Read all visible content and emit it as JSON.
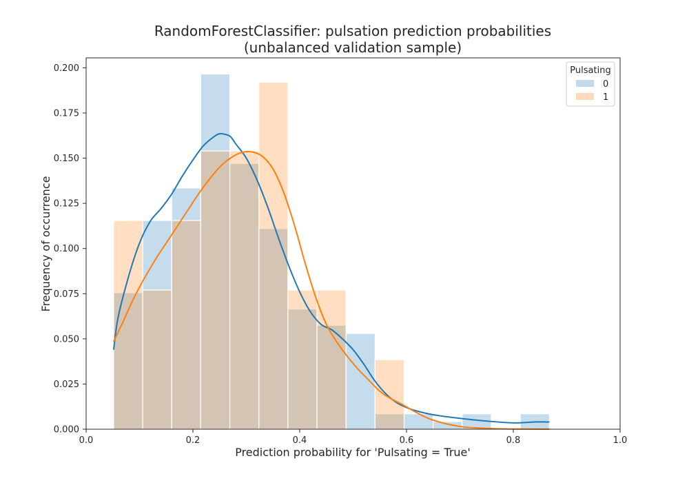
{
  "chart_data": {
    "type": "histogram",
    "title": "RandomForestClassifier: pulsation prediction probabilities",
    "subtitle": "(unbalanced validation sample)",
    "xlabel": "Prediction probability for 'Pulsating = True'",
    "ylabel": "Frequency of occurrence",
    "xlim": [
      0.0,
      1.0
    ],
    "ylim": [
      0.0,
      0.2055
    ],
    "xticks": [
      "0.0",
      "0.2",
      "0.4",
      "0.6",
      "0.8",
      "1.0"
    ],
    "yticks": [
      "0.000",
      "0.025",
      "0.050",
      "0.075",
      "0.100",
      "0.125",
      "0.150",
      "0.175",
      "0.200"
    ],
    "grid": false,
    "legend": {
      "title": "Pulsating",
      "placement": "top-right",
      "entries": [
        "0",
        "1"
      ]
    },
    "bin_edges": [
      0.0515,
      0.1059,
      0.1603,
      0.2147,
      0.2691,
      0.3235,
      0.3779,
      0.4323,
      0.4867,
      0.5411,
      0.5955,
      0.6499,
      0.7043,
      0.7587,
      0.8131,
      0.8675
    ],
    "series": [
      {
        "name": "0",
        "color": "#1f77b4",
        "hist_color": "#c4d9ea",
        "values": [
          0.0755,
          0.1155,
          0.1335,
          0.1965,
          0.147,
          0.111,
          0.0665,
          0.0575,
          0.053,
          0.0085,
          0.0085,
          0.0042,
          0.0085,
          0.0,
          0.0085
        ],
        "kde_x": [
          0.0515,
          0.06,
          0.08,
          0.1,
          0.12,
          0.14,
          0.16,
          0.18,
          0.2,
          0.22,
          0.24,
          0.25,
          0.26,
          0.27,
          0.28,
          0.3,
          0.32,
          0.34,
          0.36,
          0.38,
          0.4,
          0.42,
          0.44,
          0.46,
          0.48,
          0.5,
          0.52,
          0.54,
          0.56,
          0.58,
          0.6,
          0.62,
          0.65,
          0.7,
          0.75,
          0.8,
          0.84,
          0.8675
        ],
        "kde_y": [
          0.044,
          0.062,
          0.085,
          0.103,
          0.115,
          0.122,
          0.13,
          0.14,
          0.149,
          0.157,
          0.162,
          0.1635,
          0.1632,
          0.162,
          0.158,
          0.15,
          0.138,
          0.123,
          0.106,
          0.09,
          0.076,
          0.065,
          0.058,
          0.055,
          0.05,
          0.044,
          0.036,
          0.027,
          0.02,
          0.015,
          0.012,
          0.01,
          0.008,
          0.006,
          0.0045,
          0.0035,
          0.004,
          0.004
        ]
      },
      {
        "name": "1",
        "color": "#ff7f0e",
        "hist_color": "#ffd9bb",
        "values": [
          0.1155,
          0.077,
          0.1155,
          0.154,
          0.154,
          0.192,
          0.077,
          0.077,
          0.0,
          0.0385,
          0.0,
          0.0,
          0.0,
          0.0,
          0.0
        ],
        "kde_x": [
          0.0515,
          0.07,
          0.09,
          0.11,
          0.13,
          0.15,
          0.17,
          0.19,
          0.21,
          0.23,
          0.25,
          0.27,
          0.29,
          0.31,
          0.33,
          0.35,
          0.37,
          0.39,
          0.41,
          0.43,
          0.45,
          0.47,
          0.49,
          0.51,
          0.53,
          0.55,
          0.57,
          0.59,
          0.62,
          0.65,
          0.7,
          0.75,
          0.8,
          0.8675
        ],
        "kde_y": [
          0.0485,
          0.06,
          0.073,
          0.084,
          0.094,
          0.103,
          0.112,
          0.121,
          0.13,
          0.138,
          0.145,
          0.15,
          0.153,
          0.1535,
          0.151,
          0.144,
          0.131,
          0.113,
          0.092,
          0.073,
          0.058,
          0.048,
          0.04,
          0.033,
          0.027,
          0.021,
          0.017,
          0.014,
          0.009,
          0.005,
          0.0015,
          0.0005,
          0.0001,
          0.0
        ]
      }
    ]
  }
}
